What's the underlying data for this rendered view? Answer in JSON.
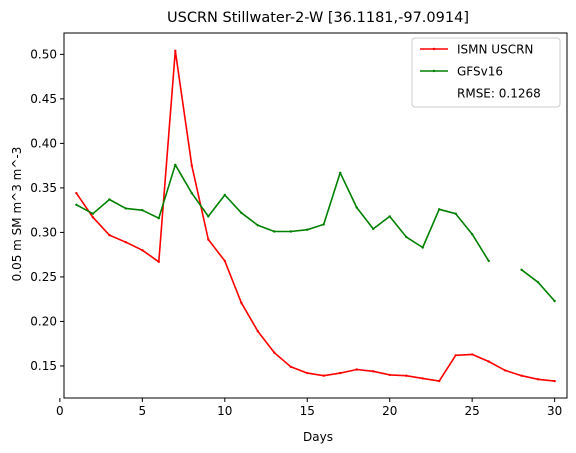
{
  "chart_data": {
    "type": "line",
    "title": "USCRN Stillwater-2-W [36.1181,-97.0914]",
    "xlabel": "Days",
    "ylabel": "0.05 m SM m^3 m^-3",
    "xlim": [
      0.25,
      30.75
    ],
    "ylim": [
      0.114,
      0.524
    ],
    "xticks": [
      0,
      5,
      10,
      15,
      20,
      25,
      30
    ],
    "yticks": [
      0.15,
      0.2,
      0.25,
      0.3,
      0.35,
      0.4,
      0.45,
      0.5
    ],
    "ytick_labels": [
      "0.15",
      "0.20",
      "0.25",
      "0.30",
      "0.35",
      "0.40",
      "0.45",
      "0.50"
    ],
    "grid": false,
    "legend_position": "top-right",
    "series": [
      {
        "name": "ISMN USCRN",
        "color": "#ff0000",
        "x": [
          1,
          2,
          3,
          4,
          5,
          6,
          7,
          8,
          9,
          10,
          11,
          12,
          13,
          14,
          15,
          16,
          17,
          18,
          19,
          20,
          21,
          22,
          23,
          24,
          25,
          26,
          27,
          28,
          29,
          30
        ],
        "y": [
          0.344,
          0.317,
          0.297,
          0.289,
          0.28,
          0.267,
          0.504,
          0.375,
          0.292,
          0.268,
          0.221,
          0.189,
          0.165,
          0.149,
          0.142,
          0.139,
          0.142,
          0.146,
          0.144,
          0.14,
          0.139,
          0.136,
          0.133,
          0.162,
          0.163,
          0.155,
          0.145,
          0.139,
          0.135,
          0.133
        ]
      },
      {
        "name": "GFSv16",
        "color": "#008000",
        "x": [
          1,
          2,
          3,
          4,
          5,
          6,
          7,
          8,
          9,
          10,
          11,
          12,
          13,
          14,
          15,
          16,
          17,
          18,
          19,
          20,
          21,
          22,
          23,
          24,
          25,
          26,
          27,
          28,
          29,
          30
        ],
        "y": [
          0.331,
          0.321,
          0.337,
          0.327,
          0.325,
          0.316,
          0.376,
          0.344,
          0.318,
          0.342,
          0.322,
          0.308,
          0.301,
          0.301,
          0.303,
          0.309,
          0.367,
          0.328,
          0.304,
          0.318,
          0.295,
          0.283,
          0.326,
          0.321,
          0.298,
          0.268,
          null,
          0.258,
          0.244,
          0.223
        ]
      }
    ],
    "annotation": "RMSE: 0.1268"
  }
}
